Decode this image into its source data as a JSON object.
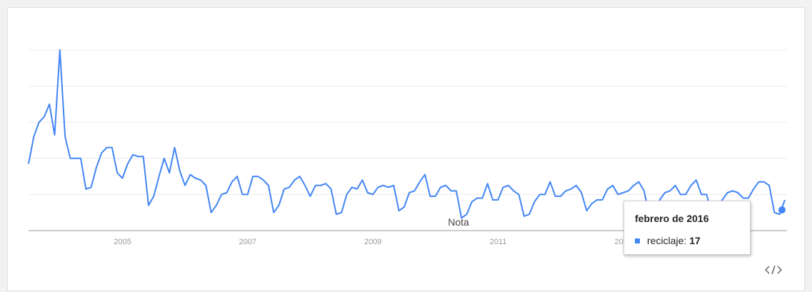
{
  "chart_data": {
    "type": "line",
    "x_start": "2004-01",
    "x_end": "2016-02",
    "series": [
      {
        "name": "reciclaje",
        "color": "#4285f4",
        "values": [
          37,
          52,
          60,
          63,
          70,
          53,
          100,
          52,
          40,
          40,
          40,
          23,
          24,
          35,
          43,
          46,
          46,
          32,
          29,
          37,
          42,
          41,
          41,
          14,
          19,
          30,
          40,
          32,
          46,
          33,
          25,
          31,
          29,
          28,
          25,
          10,
          14,
          20,
          21,
          27,
          30,
          20,
          20,
          30,
          30,
          28,
          25,
          10,
          14,
          23,
          24,
          28,
          30,
          25,
          19,
          25,
          25,
          26,
          23,
          9,
          10,
          20,
          24,
          23,
          28,
          21,
          20,
          24,
          25,
          24,
          25,
          11,
          13,
          21,
          22,
          27,
          31,
          19,
          19,
          24,
          25,
          22,
          22,
          7,
          9,
          16,
          18,
          18,
          26,
          17,
          17,
          24,
          25,
          22,
          20,
          8,
          9,
          16,
          20,
          20,
          27,
          19,
          19,
          22,
          23,
          25,
          21,
          11,
          15,
          17,
          17,
          23,
          25,
          20,
          21,
          22,
          25,
          27,
          22,
          9,
          10,
          17,
          21,
          22,
          25,
          20,
          20,
          25,
          28,
          20,
          20,
          9,
          10,
          17,
          21,
          22,
          21,
          18,
          18,
          23,
          27,
          27,
          25,
          10,
          9,
          17
        ]
      }
    ],
    "x_tick_labels": [
      "2005",
      "2007",
      "2009",
      "2011",
      "2013"
    ],
    "ylim": [
      0,
      100
    ],
    "grid": true,
    "annotation": "Nota",
    "tooltip": {
      "title": "febrero de 2016",
      "series": "reciclaje",
      "separator": ":",
      "value": "17"
    }
  },
  "icons": {
    "embed": "embed-code-icon"
  }
}
